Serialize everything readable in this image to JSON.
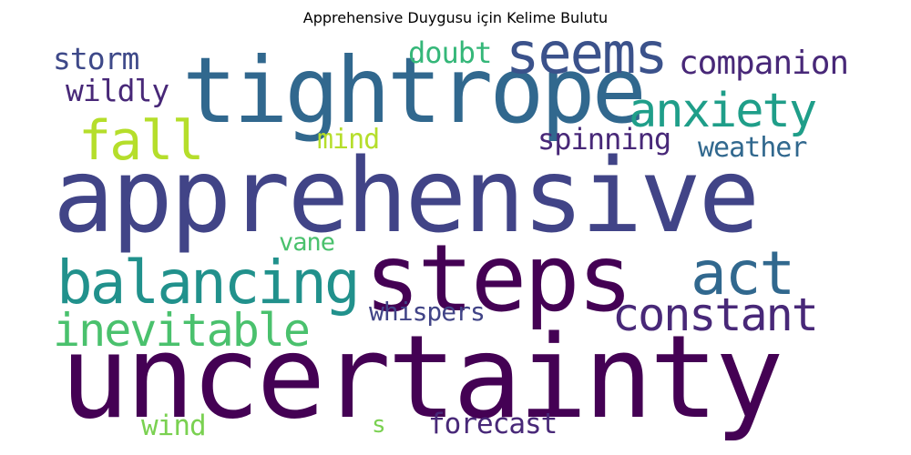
{
  "title": "Apprehensive Duygusu için Kelime Bulutu",
  "words": [
    {
      "text": "apprehensive",
      "color": "#414487"
    },
    {
      "text": "uncertainty",
      "color": "#440154"
    },
    {
      "text": "tightrope",
      "color": "#31688e"
    },
    {
      "text": "steps",
      "color": "#440154"
    },
    {
      "text": "seems",
      "color": "#3b528b"
    },
    {
      "text": "balancing",
      "color": "#21918c"
    },
    {
      "text": "act",
      "color": "#31688e"
    },
    {
      "text": "fall",
      "color": "#b5de2b"
    },
    {
      "text": "anxiety",
      "color": "#1f9e89"
    },
    {
      "text": "constant",
      "color": "#482878"
    },
    {
      "text": "inevitable",
      "color": "#4ac16d"
    },
    {
      "text": "companion",
      "color": "#482878"
    },
    {
      "text": "storm",
      "color": "#3e4989"
    },
    {
      "text": "wildly",
      "color": "#482878"
    },
    {
      "text": "doubt",
      "color": "#35b779"
    },
    {
      "text": "mind",
      "color": "#b5de2b"
    },
    {
      "text": "spinning",
      "color": "#482878"
    },
    {
      "text": "weather",
      "color": "#31688e"
    },
    {
      "text": "vane",
      "color": "#4ac16d"
    },
    {
      "text": "whispers",
      "color": "#414487"
    },
    {
      "text": "wind",
      "color": "#7ad151"
    },
    {
      "text": "s",
      "color": "#7ad151"
    },
    {
      "text": "forecast",
      "color": "#482878"
    }
  ]
}
